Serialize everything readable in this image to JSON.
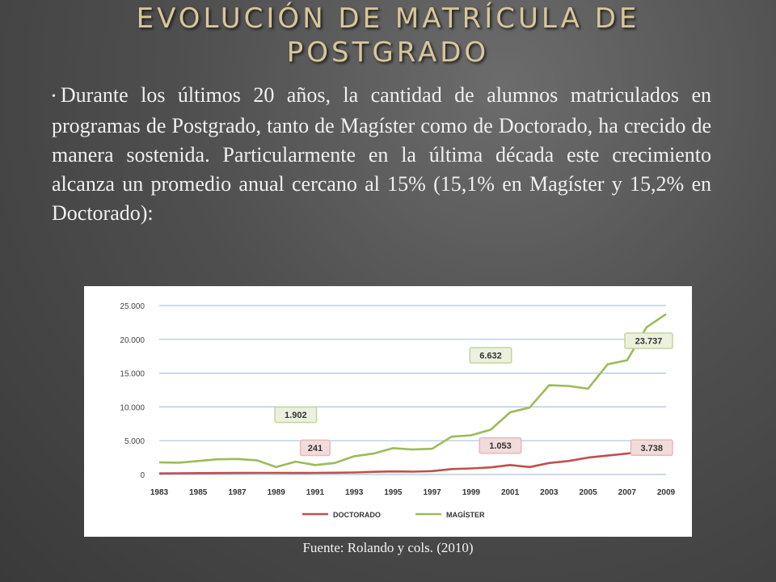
{
  "slide": {
    "title_line1": "EVOLUCIÓN DE MATRÍCULA DE",
    "title_line2": "POSTGRADO",
    "body": "Durante los últimos 20 años, la cantidad de alumnos matriculados en programas de Postgrado, tanto de Magíster como de Doctorado, ha crecido de manera sostenida. Particularmente en la última década este crecimiento alcanza un promedio anual cercano al 15% (15,1% en Magíster y 15,2% en Doctorado):",
    "source": "Fuente: Rolando y cols. (2010)"
  },
  "chart_data": {
    "type": "line",
    "x": [
      1983,
      1984,
      1985,
      1986,
      1987,
      1988,
      1989,
      1990,
      1991,
      1992,
      1993,
      1994,
      1995,
      1996,
      1997,
      1998,
      1999,
      2000,
      2001,
      2002,
      2003,
      2004,
      2005,
      2006,
      2007,
      2008,
      2009
    ],
    "x_tick_labels": [
      "1983",
      "1985",
      "1987",
      "1989",
      "1991",
      "1993",
      "1995",
      "1997",
      "1999",
      "2001",
      "2003",
      "2005",
      "2007",
      "2009"
    ],
    "y_tick_labels": [
      "0",
      "5.000",
      "10.000",
      "15.000",
      "20.000",
      "25.000"
    ],
    "ylim": [
      0,
      25000
    ],
    "grid": true,
    "legend_position": "bottom",
    "series": [
      {
        "name": "DOCTORADO",
        "color": "#c0504d",
        "values": [
          150,
          180,
          200,
          220,
          230,
          240,
          240,
          230,
          241,
          260,
          300,
          400,
          450,
          420,
          500,
          800,
          900,
          1053,
          1400,
          1100,
          1700,
          2000,
          2500,
          2800,
          3100,
          3500,
          3738
        ]
      },
      {
        "name": "MAGÍSTER",
        "color": "#9bbb59",
        "values": [
          1800,
          1750,
          2000,
          2250,
          2300,
          2100,
          1100,
          1902,
          1400,
          1700,
          2700,
          3100,
          3900,
          3700,
          3800,
          5600,
          5800,
          6632,
          9200,
          9900,
          13200,
          13100,
          12700,
          16300,
          16900,
          21800,
          23737
        ]
      }
    ],
    "annotations": [
      {
        "text": "1.902",
        "x": 1990,
        "y": 1902,
        "series": "MAGÍSTER"
      },
      {
        "text": "6.632",
        "x": 2000,
        "y": 6632,
        "series": "MAGÍSTER"
      },
      {
        "text": "23.737",
        "x": 2009,
        "y": 23737,
        "series": "MAGÍSTER"
      },
      {
        "text": "241",
        "x": 1991,
        "y": 241,
        "series": "DOCTORADO"
      },
      {
        "text": "1.053",
        "x": 2000,
        "y": 1053,
        "series": "DOCTORADO"
      },
      {
        "text": "3.738",
        "x": 2009,
        "y": 3738,
        "series": "DOCTORADO"
      }
    ]
  }
}
